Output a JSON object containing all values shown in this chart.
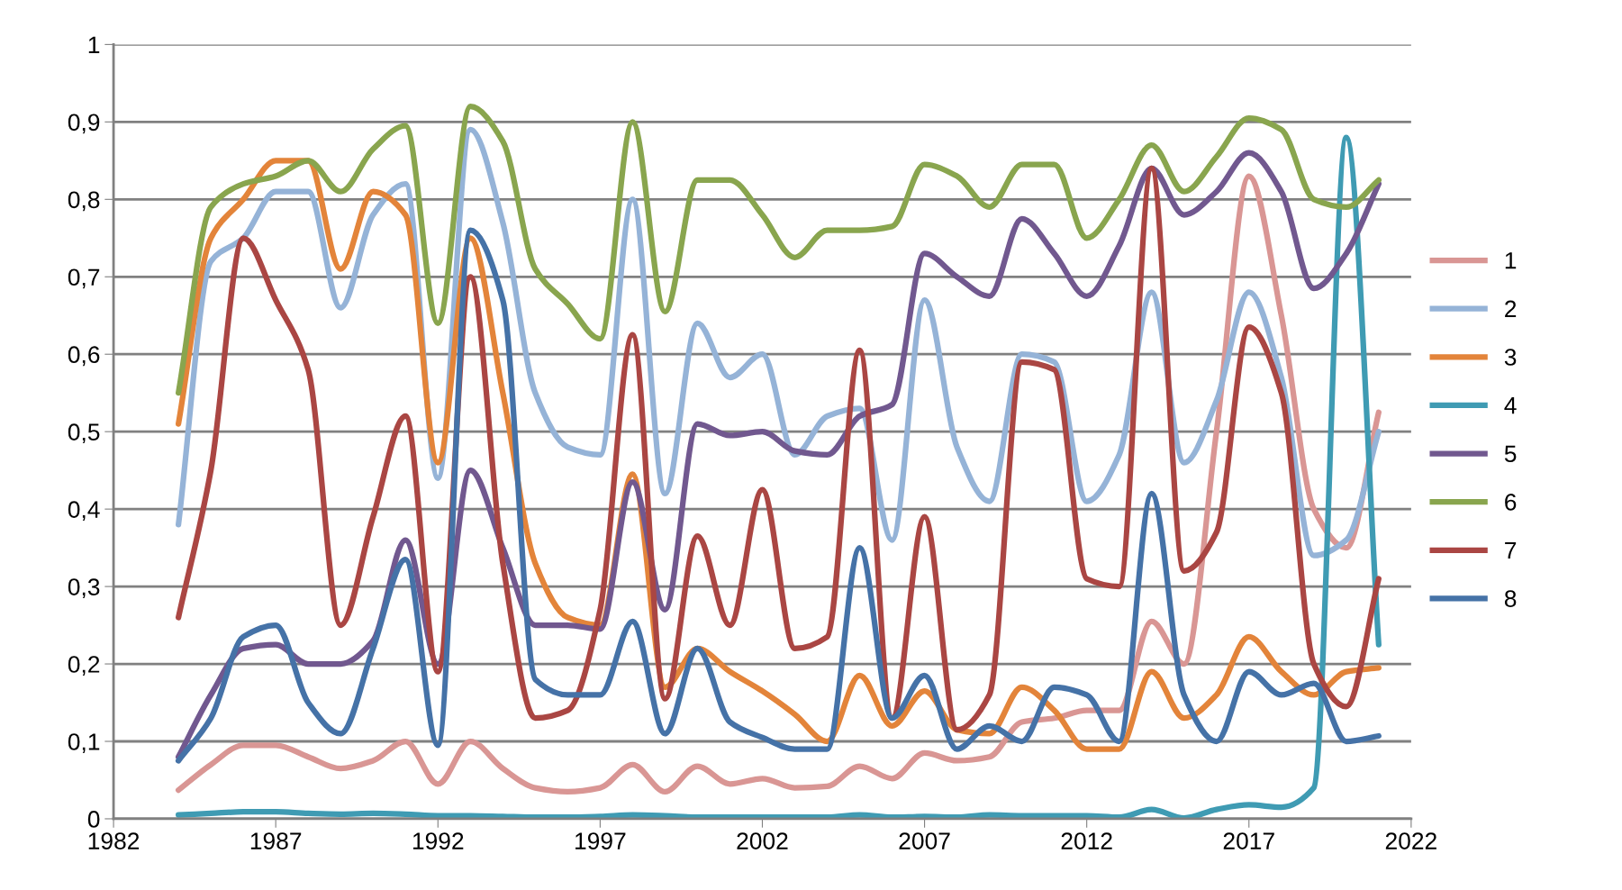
{
  "chart_data": {
    "type": "line",
    "x": [
      1984,
      1985,
      1986,
      1987,
      1988,
      1989,
      1990,
      1991,
      1992,
      1993,
      1994,
      1995,
      1996,
      1997,
      1998,
      1999,
      2000,
      2001,
      2002,
      2003,
      2004,
      2005,
      2006,
      2007,
      2008,
      2009,
      2010,
      2011,
      2012,
      2013,
      2014,
      2015,
      2016,
      2017,
      2018,
      2019,
      2020,
      2021
    ],
    "series": [
      {
        "name": "1",
        "color": "#d99694",
        "values": [
          0.037,
          0.07,
          0.095,
          0.095,
          0.08,
          0.065,
          0.075,
          0.1,
          0.045,
          0.1,
          0.065,
          0.04,
          0.035,
          0.04,
          0.07,
          0.035,
          0.068,
          0.045,
          0.052,
          0.04,
          0.042,
          0.068,
          0.052,
          0.085,
          0.075,
          0.08,
          0.125,
          0.13,
          0.14,
          0.14,
          0.255,
          0.2,
          0.5,
          0.83,
          0.65,
          0.4,
          0.35,
          0.525
        ]
      },
      {
        "name": "2",
        "color": "#95b3d7",
        "values": [
          0.38,
          0.72,
          0.75,
          0.81,
          0.81,
          0.66,
          0.78,
          0.82,
          0.44,
          0.89,
          0.77,
          0.55,
          0.48,
          0.47,
          0.8,
          0.42,
          0.64,
          0.57,
          0.6,
          0.47,
          0.52,
          0.53,
          0.36,
          0.67,
          0.48,
          0.41,
          0.6,
          0.59,
          0.41,
          0.47,
          0.68,
          0.46,
          0.54,
          0.68,
          0.57,
          0.34,
          0.36,
          0.5
        ]
      },
      {
        "name": "3",
        "color": "#e3843a",
        "values": [
          0.51,
          0.75,
          0.8,
          0.85,
          0.85,
          0.71,
          0.81,
          0.78,
          0.46,
          0.75,
          0.55,
          0.33,
          0.26,
          0.25,
          0.445,
          0.17,
          0.22,
          0.19,
          0.165,
          0.135,
          0.1,
          0.185,
          0.12,
          0.165,
          0.115,
          0.11,
          0.17,
          0.14,
          0.09,
          0.09,
          0.19,
          0.13,
          0.16,
          0.235,
          0.19,
          0.16,
          0.19,
          0.195
        ]
      },
      {
        "name": "4",
        "color": "#3f9bb3",
        "values": [
          0.005,
          0.007,
          0.009,
          0.009,
          0.007,
          0.006,
          0.007,
          0.006,
          0.004,
          0.004,
          0.003,
          0.002,
          0.002,
          0.003,
          0.005,
          0.004,
          0.002,
          0.002,
          0.002,
          0.002,
          0.002,
          0.005,
          0.002,
          0.003,
          0.002,
          0.005,
          0.004,
          0.004,
          0.004,
          0.002,
          0.012,
          0.001,
          0.012,
          0.018,
          0.015,
          0.04,
          0.88,
          0.225
        ]
      },
      {
        "name": "5",
        "color": "#71588f",
        "values": [
          0.08,
          0.16,
          0.22,
          0.225,
          0.2,
          0.2,
          0.23,
          0.36,
          0.2,
          0.45,
          0.35,
          0.25,
          0.25,
          0.245,
          0.435,
          0.27,
          0.51,
          0.495,
          0.5,
          0.475,
          0.47,
          0.52,
          0.535,
          0.73,
          0.7,
          0.675,
          0.775,
          0.73,
          0.675,
          0.74,
          0.84,
          0.78,
          0.81,
          0.86,
          0.81,
          0.685,
          0.73,
          0.82
        ]
      },
      {
        "name": "6",
        "color": "#89a54e",
        "values": [
          0.55,
          0.79,
          0.82,
          0.83,
          0.85,
          0.81,
          0.865,
          0.895,
          0.64,
          0.92,
          0.875,
          0.71,
          0.665,
          0.62,
          0.9,
          0.655,
          0.825,
          0.825,
          0.78,
          0.725,
          0.76,
          0.76,
          0.765,
          0.845,
          0.83,
          0.79,
          0.845,
          0.845,
          0.75,
          0.8,
          0.87,
          0.81,
          0.855,
          0.905,
          0.89,
          0.8,
          0.79,
          0.825
        ]
      },
      {
        "name": "7",
        "color": "#aa4643",
        "values": [
          0.26,
          0.45,
          0.75,
          0.67,
          0.58,
          0.25,
          0.39,
          0.52,
          0.19,
          0.7,
          0.33,
          0.13,
          0.14,
          0.27,
          0.625,
          0.155,
          0.365,
          0.25,
          0.425,
          0.22,
          0.235,
          0.605,
          0.13,
          0.39,
          0.115,
          0.16,
          0.59,
          0.58,
          0.31,
          0.3,
          0.84,
          0.32,
          0.37,
          0.635,
          0.55,
          0.2,
          0.145,
          0.31
        ]
      },
      {
        "name": "8",
        "color": "#4572a7",
        "values": [
          0.075,
          0.13,
          0.235,
          0.25,
          0.15,
          0.11,
          0.22,
          0.335,
          0.095,
          0.76,
          0.67,
          0.18,
          0.16,
          0.16,
          0.255,
          0.11,
          0.22,
          0.125,
          0.105,
          0.09,
          0.09,
          0.35,
          0.13,
          0.185,
          0.09,
          0.12,
          0.1,
          0.17,
          0.16,
          0.1,
          0.42,
          0.16,
          0.1,
          0.19,
          0.16,
          0.175,
          0.1,
          0.107
        ]
      }
    ],
    "xlim": [
      1982,
      2022
    ],
    "xticks": [
      1982,
      1987,
      1992,
      1997,
      2002,
      2007,
      2012,
      2017,
      2022
    ],
    "ylim": [
      0,
      1
    ],
    "yticks": [
      0,
      {
        "value": 0.1,
        "label": "0,1"
      },
      {
        "value": 0.2,
        "label": "0,2"
      },
      {
        "value": 0.3,
        "label": "0,3"
      },
      {
        "value": 0.4,
        "label": "0,4"
      },
      {
        "value": 0.5,
        "label": "0,5"
      },
      {
        "value": 0.6,
        "label": "0,6"
      },
      {
        "value": 0.7,
        "label": "0,7"
      },
      {
        "value": 0.8,
        "label": "0,8"
      },
      {
        "value": 0.9,
        "label": "0,9"
      },
      1
    ],
    "grid": "y",
    "legend": "right",
    "marker": "none",
    "line_style": "solid"
  }
}
